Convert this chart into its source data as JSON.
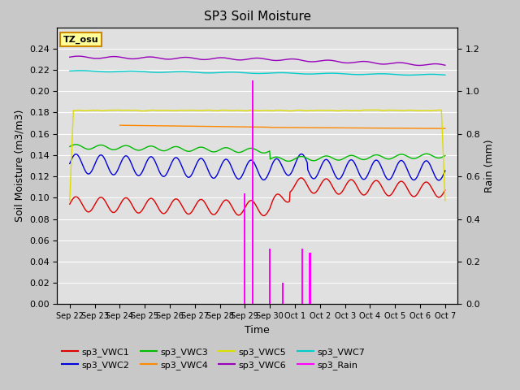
{
  "title": "SP3 Soil Moisture",
  "xlabel": "Time",
  "ylabel_left": "Soil Moisture (m3/m3)",
  "ylabel_right": "Rain (mm)",
  "ylim_left": [
    0.0,
    0.26
  ],
  "ylim_right": [
    0.0,
    1.3
  ],
  "yticks_left": [
    0.0,
    0.02,
    0.04,
    0.06,
    0.08,
    0.1,
    0.12,
    0.14,
    0.16,
    0.18,
    0.2,
    0.22,
    0.24
  ],
  "yticks_right": [
    0.0,
    0.2,
    0.4,
    0.6,
    0.8,
    1.0,
    1.2
  ],
  "fig_bg": "#c8c8c8",
  "plot_bg": "#e0e0e0",
  "title_fontsize": 11,
  "label_fontsize": 9,
  "tick_fontsize": 8,
  "tz_label": "TZ_osu",
  "tz_box_color": "#ffff99",
  "tz_border_color": "#cc8800",
  "series_colors": {
    "VWC1": "#dd0000",
    "VWC2": "#0000dd",
    "VWC3": "#00bb00",
    "VWC4": "#ff8800",
    "VWC5": "#dddd00",
    "VWC6": "#9900bb",
    "VWC7": "#00cccc",
    "Rain": "#ff00ff"
  },
  "x_tick_labels": [
    "Sep 22",
    "Sep 23",
    "Sep 24",
    "Sep 25",
    "Sep 26",
    "Sep 27",
    "Sep 28",
    "Sep 29",
    "Sep 30",
    "Oct 1",
    "Oct 2",
    "Oct 3",
    "Oct 4",
    "Oct 5",
    "Oct 6",
    "Oct 7"
  ],
  "n_points": 720,
  "rain_day": 8.0
}
